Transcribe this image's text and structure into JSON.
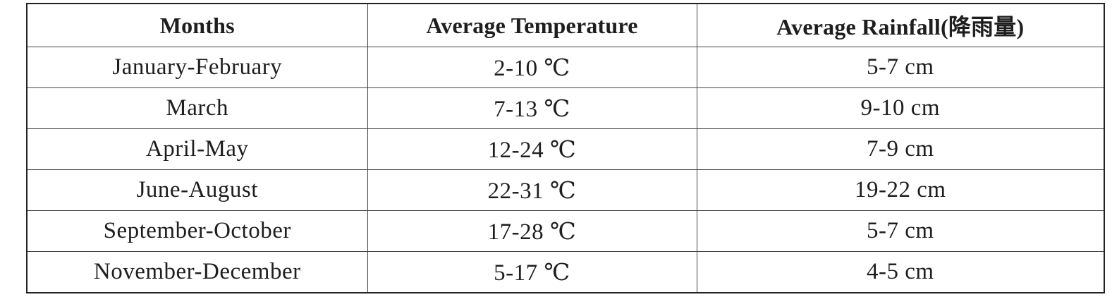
{
  "table": {
    "headers": [
      "Months",
      "Average Temperature",
      "Average Rainfall(降雨量)"
    ],
    "rows": [
      [
        "January-February",
        "2-10 ℃",
        "5-7 cm"
      ],
      [
        "March",
        "7-13 ℃",
        "9-10 cm"
      ],
      [
        "April-May",
        "12-24 ℃",
        "7-9 cm"
      ],
      [
        "June-August",
        "22-31 ℃",
        "19-22 cm"
      ],
      [
        "September-October",
        "17-28 ℃",
        "5-7 cm"
      ],
      [
        "November-December",
        "5-17 ℃",
        "4-5 cm"
      ]
    ]
  }
}
